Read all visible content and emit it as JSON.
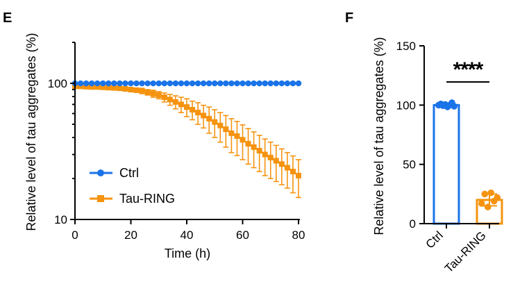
{
  "panels": {
    "left": "E",
    "right": "F"
  },
  "colors": {
    "ctrl": "#1a73e8",
    "tau": "#f5930f"
  },
  "chart_data": [
    {
      "type": "line",
      "panel": "E",
      "xlabel": "Time (h)",
      "ylabel": "Relative level of tau aggregates (%)",
      "yscale": "log",
      "xlim": [
        0,
        80
      ],
      "ylim": [
        10,
        200
      ],
      "xticks": [
        0,
        20,
        40,
        60,
        80
      ],
      "yticks": [
        10,
        100
      ],
      "legend_position": "bottom-left",
      "series": [
        {
          "name": "Ctrl",
          "marker": "circle",
          "x": [
            0,
            2,
            4,
            6,
            8,
            10,
            12,
            14,
            16,
            18,
            20,
            22,
            24,
            26,
            28,
            30,
            32,
            34,
            36,
            38,
            40,
            42,
            44,
            46,
            48,
            50,
            52,
            54,
            56,
            58,
            60,
            62,
            64,
            66,
            68,
            70,
            72,
            74,
            76,
            78,
            80
          ],
          "y": [
            100,
            100,
            100,
            100,
            100,
            100,
            100,
            100,
            100,
            100,
            100,
            100,
            100,
            100,
            100,
            100,
            100,
            100,
            100,
            100,
            100,
            100,
            100,
            100,
            100,
            100,
            100,
            100,
            100,
            100,
            100,
            100,
            100,
            100,
            100,
            100,
            100,
            100,
            100,
            100,
            100
          ],
          "err": []
        },
        {
          "name": "Tau-RING",
          "marker": "square",
          "x": [
            0,
            2,
            4,
            6,
            8,
            10,
            12,
            14,
            16,
            18,
            20,
            22,
            24,
            26,
            28,
            30,
            32,
            34,
            36,
            38,
            40,
            42,
            44,
            46,
            48,
            50,
            52,
            54,
            56,
            58,
            60,
            62,
            64,
            66,
            68,
            70,
            72,
            74,
            76,
            78,
            80
          ],
          "y": [
            95,
            95,
            94.5,
            94,
            94,
            93.5,
            93,
            92.5,
            92,
            91,
            90,
            89,
            88,
            86,
            84,
            82,
            79,
            76,
            73,
            70,
            67,
            64,
            61,
            58,
            55,
            52,
            49,
            46,
            43,
            41,
            38.5,
            36,
            34,
            32,
            30,
            28.5,
            27,
            25.5,
            24,
            22.5,
            21
          ],
          "err": [
            3,
            3,
            3,
            3,
            3,
            3,
            3,
            3,
            3,
            3,
            3,
            3,
            4,
            4,
            5,
            5,
            6,
            7,
            8,
            9,
            10,
            10,
            11,
            11,
            12,
            12,
            12,
            12,
            12,
            11.5,
            11,
            10.5,
            10,
            9.5,
            9,
            8.5,
            8,
            7.5,
            7,
            6.8,
            6.5
          ]
        }
      ]
    },
    {
      "type": "bar",
      "panel": "F",
      "ylabel": "Relative level of tau aggregates (%)",
      "categories": [
        "Ctrl",
        "Tau-RING"
      ],
      "values": [
        100,
        20
      ],
      "err": [
        1.5,
        5
      ],
      "points": [
        [
          100,
          101,
          99.5,
          100.5,
          98.5,
          100,
          102,
          99
        ],
        [
          17,
          25,
          14,
          26,
          19,
          22
        ]
      ],
      "ylim": [
        0,
        150
      ],
      "yticks": [
        0,
        50,
        100,
        150
      ],
      "annotation": "****"
    }
  ]
}
